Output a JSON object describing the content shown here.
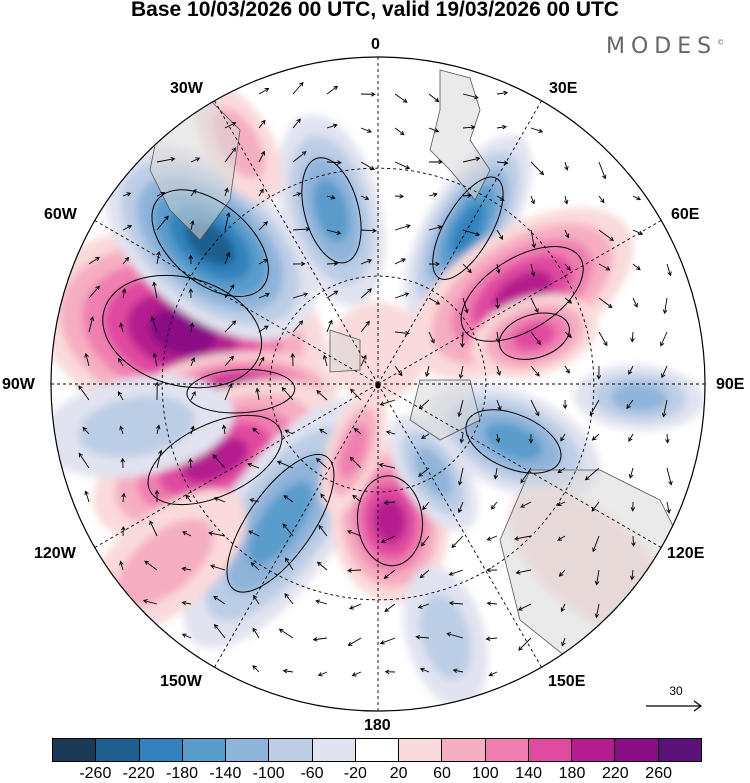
{
  "title": "Base 10/03/2026 00 UTC, valid 19/03/2026 00 UTC",
  "logo": "MODES",
  "logo_mark": "©",
  "longitude_labels": {
    "n": "0",
    "ne": "30E",
    "e1": "60E",
    "e": "90E",
    "se1": "120E",
    "se2": "150E",
    "s": "180",
    "sw2": "150W",
    "sw1": "120W",
    "w": "90W",
    "nw1": "60W",
    "nw2": "30W"
  },
  "vector_reference": "30",
  "colorbar": {
    "colors": [
      "#1b3a57",
      "#1f5f8f",
      "#3182bd",
      "#5a9ccc",
      "#8fb4da",
      "#bccde6",
      "#e1e3f0",
      "#ffffff",
      "#fadada",
      "#f6aec2",
      "#ef7fb0",
      "#e04aa0",
      "#b51c8e",
      "#8a0e86",
      "#5c1178"
    ],
    "ticks": [
      "-260",
      "-220",
      "-180",
      "-140",
      "-100",
      "-60",
      "-20",
      "20",
      "60",
      "100",
      "140",
      "180",
      "220",
      "260"
    ]
  },
  "anomalies": [
    {
      "lon": -75,
      "r": 0.62,
      "a": 0.45,
      "b": 0.3,
      "value": 240
    },
    {
      "lon": -50,
      "r": 0.67,
      "a": 0.38,
      "b": 0.22,
      "value": -240
    },
    {
      "lon": -93,
      "r": 0.42,
      "a": 0.3,
      "b": 0.12,
      "value": 230
    },
    {
      "lon": -15,
      "r": 0.55,
      "a": 0.3,
      "b": 0.15,
      "value": -150
    },
    {
      "lon": 30,
      "r": 0.55,
      "a": 0.32,
      "b": 0.13,
      "value": -200
    },
    {
      "lon": 58,
      "r": 0.52,
      "a": 0.38,
      "b": 0.2,
      "value": 170
    },
    {
      "lon": 73,
      "r": 0.5,
      "a": 0.2,
      "b": 0.12,
      "value": 150
    },
    {
      "lon": 113,
      "r": 0.45,
      "a": 0.28,
      "b": 0.15,
      "value": -140
    },
    {
      "lon": 93,
      "r": 0.8,
      "a": 0.2,
      "b": 0.1,
      "value": -100
    },
    {
      "lon": -115,
      "r": 0.55,
      "a": 0.4,
      "b": 0.2,
      "value": 180
    },
    {
      "lon": -145,
      "r": 0.52,
      "a": 0.45,
      "b": 0.18,
      "value": -160
    },
    {
      "lon": 175,
      "r": 0.42,
      "a": 0.25,
      "b": 0.18,
      "value": 180
    },
    {
      "lon": 148,
      "r": 0.32,
      "a": 0.2,
      "b": 0.1,
      "value": -100
    },
    {
      "lon": -160,
      "r": 0.22,
      "a": 0.2,
      "b": 0.08,
      "value": 110
    },
    {
      "lon": 165,
      "r": 0.8,
      "a": 0.22,
      "b": 0.12,
      "value": -80
    },
    {
      "lon": 130,
      "r": 0.85,
      "a": 0.3,
      "b": 0.15,
      "value": 40
    },
    {
      "lon": -130,
      "r": 0.85,
      "a": 0.3,
      "b": 0.15,
      "value": 50
    },
    {
      "lon": -100,
      "r": 0.75,
      "a": 0.3,
      "b": 0.15,
      "value": -50
    },
    {
      "lon": -30,
      "r": 0.85,
      "a": 0.2,
      "b": 0.1,
      "value": 50
    },
    {
      "lon": 0,
      "r": 0.1,
      "a": 0.15,
      "b": 0.15,
      "value": 30
    }
  ]
}
